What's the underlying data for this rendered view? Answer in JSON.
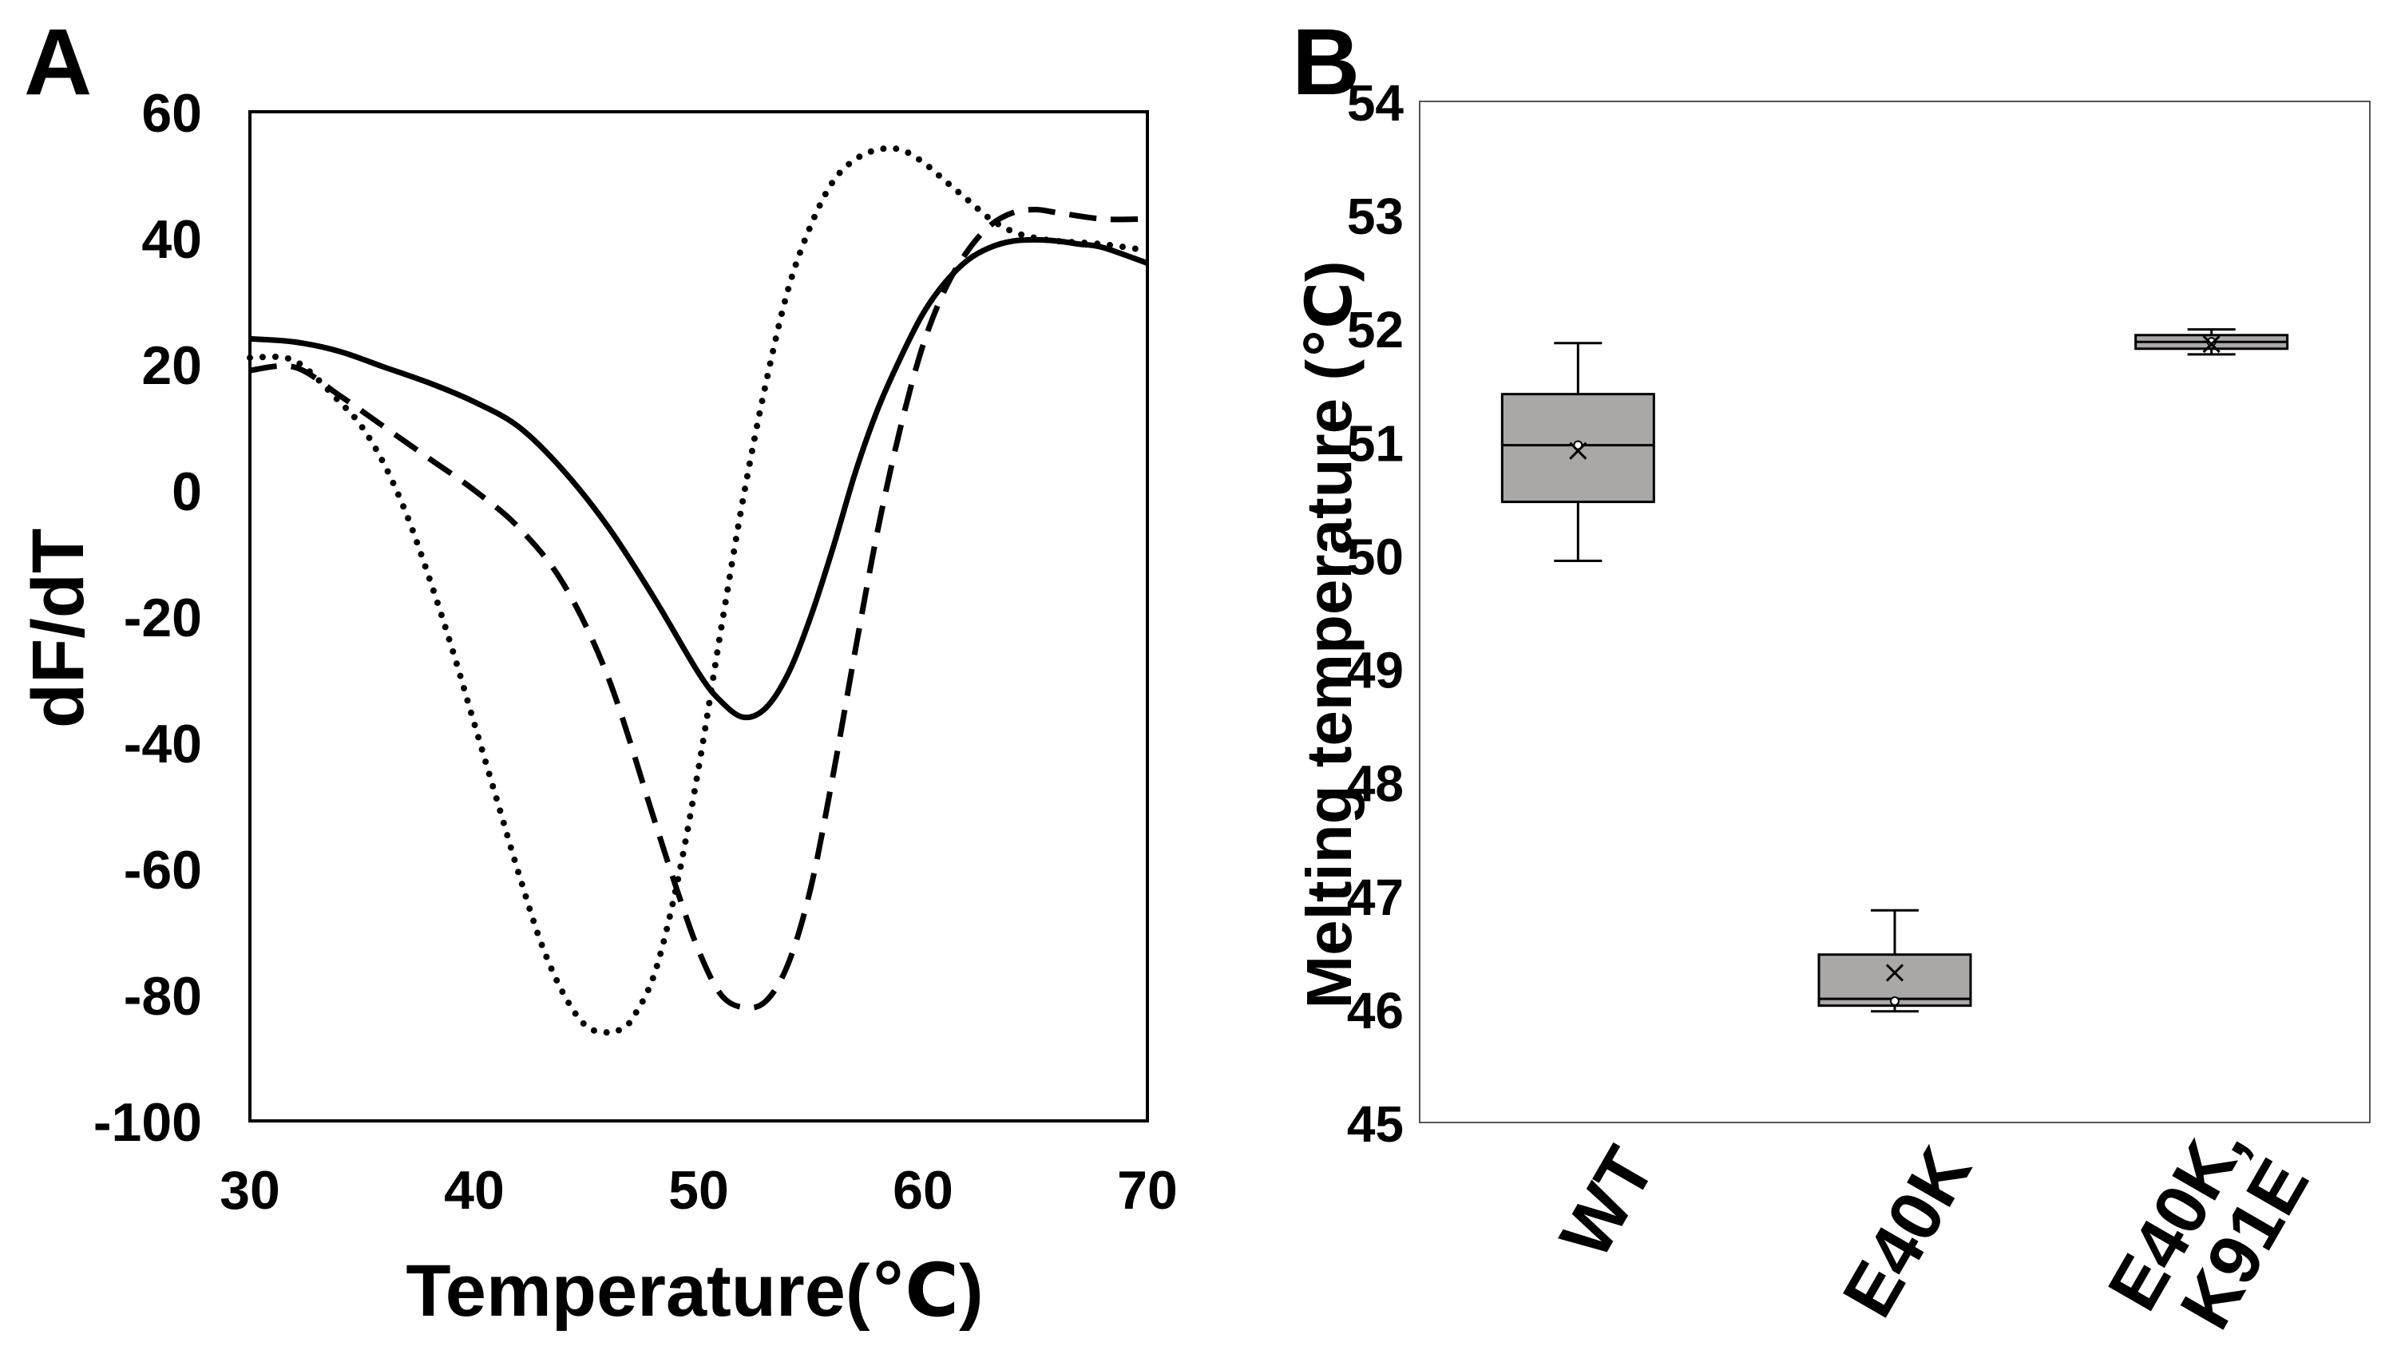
{
  "panels": {
    "a": {
      "letter": "A"
    },
    "b": {
      "letter": "B"
    }
  },
  "colors": {
    "box_fill": "#aaa7a7",
    "line": "#000000"
  },
  "chart_data": [
    {
      "id": "panel-a",
      "type": "line",
      "xlabel": "Temperature(℃)",
      "ylabel": "dF/dT",
      "xlim": [
        30,
        70
      ],
      "ylim": [
        -100,
        60
      ],
      "xticks": [
        30,
        40,
        50,
        60,
        70
      ],
      "yticks": [
        60,
        40,
        20,
        0,
        -20,
        -40,
        -60,
        -80,
        -100
      ],
      "grid": false,
      "legend": "none",
      "series": [
        {
          "name": "solid",
          "style": "solid",
          "x": [
            30,
            32,
            34,
            36,
            38,
            40,
            42,
            44,
            46,
            48,
            50,
            51,
            52,
            53,
            54,
            55,
            56,
            57,
            58,
            59,
            60,
            61,
            62,
            63,
            64,
            65,
            66,
            67,
            68,
            70
          ],
          "y": [
            24,
            23.5,
            22,
            19.5,
            17,
            14,
            10,
            3,
            -6,
            -17,
            -29,
            -33.5,
            -36,
            -34.5,
            -29,
            -20,
            -9,
            3,
            13,
            21,
            28,
            33,
            36.5,
            38.5,
            39.5,
            39.7,
            39.5,
            39,
            38.5,
            36
          ]
        },
        {
          "name": "dashed",
          "style": "dashed",
          "x": [
            30,
            32,
            34,
            36,
            38,
            40,
            42,
            44,
            46,
            48,
            49,
            50,
            51,
            52,
            53,
            54,
            55,
            56,
            57,
            58,
            59,
            60,
            61,
            62,
            63,
            64,
            65,
            66,
            68,
            70
          ],
          "y": [
            19,
            19.5,
            15,
            10,
            5,
            0,
            -6,
            -15,
            -30,
            -52,
            -63,
            -73,
            -80,
            -82,
            -81,
            -75,
            -63,
            -45,
            -25,
            -6,
            10,
            23,
            32,
            38,
            42,
            44,
            44.5,
            44,
            43,
            43
          ]
        },
        {
          "name": "dotted",
          "style": "dotted",
          "x": [
            30,
            32,
            34,
            35,
            36,
            37,
            38,
            39,
            40,
            41,
            42,
            43,
            44,
            45,
            46,
            46.5,
            47,
            48,
            49,
            50,
            51,
            52,
            53,
            54,
            55,
            56,
            57,
            58,
            59,
            60,
            61,
            62,
            63,
            64,
            65,
            66,
            68,
            70
          ],
          "y": [
            21,
            20.5,
            14,
            10,
            4,
            -4,
            -14,
            -25,
            -37,
            -49,
            -61,
            -72,
            -80,
            -85,
            -86,
            -85.5,
            -84,
            -77,
            -63,
            -44,
            -22,
            -1,
            17,
            32,
            42,
            49,
            52.5,
            54,
            54,
            52,
            49,
            46,
            43,
            41,
            40,
            39.5,
            39,
            38
          ]
        }
      ]
    },
    {
      "id": "panel-b",
      "type": "box",
      "ylabel": "Melting temperature (℃)",
      "categories": [
        "WT",
        "E40K",
        "E40K,\nK91E"
      ],
      "category_lines": [
        [
          "WT"
        ],
        [
          "E40K"
        ],
        [
          "E40K,",
          "K91E"
        ]
      ],
      "ylim": [
        45,
        54
      ],
      "yticks": [
        54,
        53,
        52,
        51,
        50,
        49,
        48,
        47,
        46,
        45
      ],
      "grid": false,
      "legend": "none",
      "boxes": [
        {
          "min": 49.95,
          "q1": 50.47,
          "median": 50.97,
          "q3": 51.42,
          "max": 51.87,
          "mean": 50.92,
          "points": [
            50.97
          ]
        },
        {
          "min": 45.98,
          "q1": 46.03,
          "median": 46.09,
          "q3": 46.48,
          "max": 46.87,
          "mean": 46.32,
          "points": [
            46.07
          ]
        },
        {
          "min": 51.77,
          "q1": 51.82,
          "median": 51.88,
          "q3": 51.94,
          "max": 51.99,
          "mean": 51.86,
          "points": [
            51.88
          ]
        }
      ]
    }
  ]
}
